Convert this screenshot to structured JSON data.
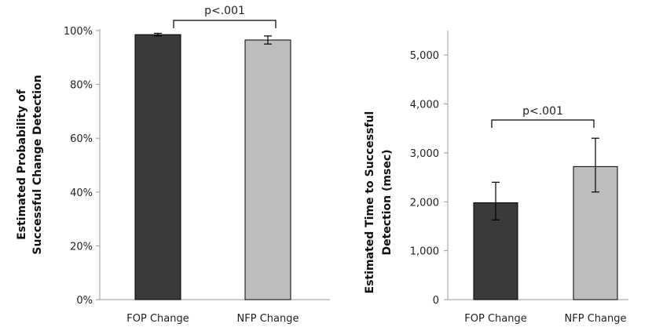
{
  "chart_data": [
    {
      "type": "bar",
      "categories": [
        "FOP Change",
        "NFP Change"
      ],
      "values": [
        98.5,
        96.5
      ],
      "error_low": [
        98.0,
        95.0
      ],
      "error_high": [
        99.0,
        98.0
      ],
      "ylim": [
        0,
        100
      ],
      "yticks": [
        "0%",
        "20%",
        "40%",
        "60%",
        "80%",
        "100%"
      ],
      "ylabel_lines": [
        "Estimated Probability of",
        "Successful Change Detection"
      ],
      "xlabel": "",
      "annotation": "p<.001",
      "colors": [
        "#3a3a3a",
        "#bdbdbd"
      ]
    },
    {
      "type": "bar",
      "categories": [
        "FOP Change",
        "NFP Change"
      ],
      "values": [
        1980,
        2720
      ],
      "error_low": [
        1630,
        2200
      ],
      "error_high": [
        2400,
        3300
      ],
      "ylim": [
        0,
        5500
      ],
      "yticks": [
        "0",
        "1,000",
        "2,000",
        "3,000",
        "4,000",
        "5,000"
      ],
      "ylabel_lines": [
        "Estimated Time to Successful",
        "Detection (msec)"
      ],
      "xlabel": "",
      "annotation": "p<.001",
      "colors": [
        "#3a3a3a",
        "#bdbdbd"
      ]
    }
  ]
}
